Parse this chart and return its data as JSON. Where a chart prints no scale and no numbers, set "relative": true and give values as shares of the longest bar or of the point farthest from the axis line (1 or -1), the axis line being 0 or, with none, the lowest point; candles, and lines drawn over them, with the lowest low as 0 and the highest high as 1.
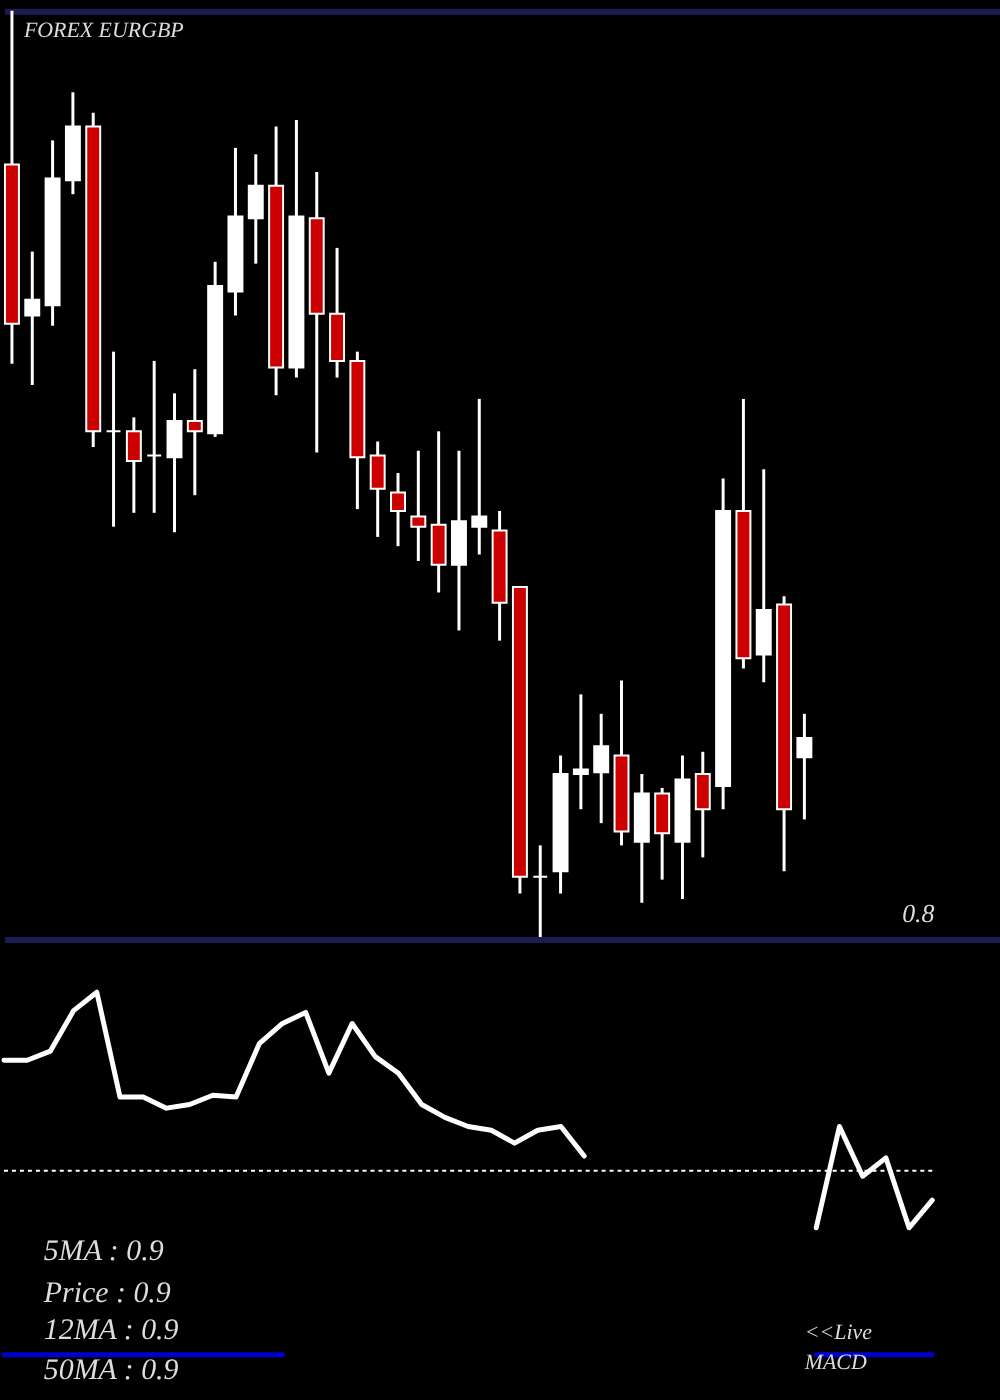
{
  "chart_data": [
    {
      "type": "candlestick",
      "title": "FOREX EURGBP",
      "relative": true,
      "categories": [
        null,
        null,
        null,
        null,
        null,
        null,
        null,
        null,
        null,
        null,
        null,
        null,
        null,
        null,
        null,
        null,
        null,
        null,
        null,
        null,
        null,
        null,
        null,
        null,
        null,
        null,
        null,
        null,
        null,
        null,
        null,
        null,
        null,
        null,
        null,
        null,
        null,
        null,
        null,
        null
      ],
      "ohlc": [
        [
          0.834,
          1.0,
          0.619,
          0.662
        ],
        [
          0.671,
          0.74,
          0.596,
          0.688
        ],
        [
          0.682,
          0.86,
          0.66,
          0.819
        ],
        [
          0.817,
          0.912,
          0.802,
          0.875
        ],
        [
          0.875,
          0.89,
          0.529,
          0.546
        ],
        [
          0.546,
          0.632,
          0.443,
          0.546
        ],
        [
          0.546,
          0.561,
          0.458,
          0.514
        ],
        [
          0.52,
          0.622,
          0.458,
          0.52
        ],
        [
          0.518,
          0.587,
          0.437,
          0.557
        ],
        [
          0.557,
          0.613,
          0.477,
          0.546
        ],
        [
          0.544,
          0.729,
          0.54,
          0.703
        ],
        [
          0.697,
          0.852,
          0.671,
          0.778
        ],
        [
          0.776,
          0.845,
          0.727,
          0.811
        ],
        [
          0.811,
          0.875,
          0.585,
          0.615
        ],
        [
          0.615,
          0.882,
          0.604,
          0.778
        ],
        [
          0.776,
          0.826,
          0.523,
          0.673
        ],
        [
          0.673,
          0.744,
          0.604,
          0.622
        ],
        [
          0.622,
          0.632,
          0.462,
          0.518
        ],
        [
          0.52,
          0.535,
          0.432,
          0.484
        ],
        [
          0.48,
          0.501,
          0.422,
          0.46
        ],
        [
          0.454,
          0.525,
          0.406,
          0.443
        ],
        [
          0.445,
          0.546,
          0.372,
          0.402
        ],
        [
          0.402,
          0.525,
          0.331,
          0.449
        ],
        [
          0.443,
          0.581,
          0.413,
          0.454
        ],
        [
          0.439,
          0.46,
          0.32,
          0.361
        ],
        [
          0.378,
          0.378,
          0.047,
          0.065
        ],
        [
          0.065,
          0.099,
          0.0,
          0.065
        ],
        [
          0.071,
          0.196,
          0.047,
          0.176
        ],
        [
          0.176,
          0.262,
          0.138,
          0.181
        ],
        [
          0.178,
          0.241,
          0.123,
          0.206
        ],
        [
          0.196,
          0.277,
          0.099,
          0.114
        ],
        [
          0.103,
          0.176,
          0.037,
          0.155
        ],
        [
          0.155,
          0.161,
          0.062,
          0.112
        ],
        [
          0.103,
          0.196,
          0.041,
          0.17
        ],
        [
          0.176,
          0.2,
          0.086,
          0.138
        ],
        [
          0.163,
          0.495,
          0.138,
          0.46
        ],
        [
          0.46,
          0.581,
          0.29,
          0.301
        ],
        [
          0.305,
          0.505,
          0.275,
          0.353
        ],
        [
          0.359,
          0.368,
          0.071,
          0.138
        ],
        [
          0.194,
          0.241,
          0.127,
          0.215
        ]
      ],
      "colors": [
        "#cc0000",
        "#ffffff",
        "#ffffff",
        "#ffffff",
        "#cc0000",
        "#ffffff",
        "#cc0000",
        "#ffffff",
        "#ffffff",
        "#cc0000",
        "#ffffff",
        "#ffffff",
        "#ffffff",
        "#cc0000",
        "#ffffff",
        "#cc0000",
        "#cc0000",
        "#cc0000",
        "#cc0000",
        "#cc0000",
        "#cc0000",
        "#cc0000",
        "#ffffff",
        "#ffffff",
        "#cc0000",
        "#cc0000",
        "#ffffff",
        "#ffffff",
        "#ffffff",
        "#ffffff",
        "#cc0000",
        "#ffffff",
        "#cc0000",
        "#ffffff",
        "#cc0000",
        "#ffffff",
        "#cc0000",
        "#ffffff",
        "#cc0000",
        "#ffffff"
      ],
      "annotations": [
        "0.8"
      ]
    },
    {
      "type": "line",
      "relative": true,
      "categories": [
        null,
        null,
        null,
        null,
        null,
        null,
        null,
        null,
        null,
        null,
        null,
        null,
        null,
        null,
        null,
        null,
        null,
        null,
        null,
        null,
        null,
        null,
        null,
        null,
        null,
        null,
        null,
        null,
        null,
        null,
        null,
        null,
        null,
        null,
        null,
        null,
        null,
        null,
        null,
        null,
        null
      ],
      "series": [
        {
          "color": "#ffffff",
          "values": [
            0.6,
            0.6,
            0.65,
            0.87,
            0.97,
            0.4,
            0.4,
            0.34,
            0.36,
            0.41,
            0.4,
            0.69,
            0.8,
            0.86,
            0.53,
            0.8,
            0.62,
            0.53,
            0.36,
            0.29,
            0.24,
            0.22,
            0.15,
            0.22,
            0.24,
            0.08,
            null,
            null,
            null,
            null,
            null,
            null,
            null,
            null,
            null,
            -0.31,
            0.24,
            -0.03,
            0.07,
            -0.31,
            -0.16
          ]
        },
        {
          "color": "#0000cc",
          "values": [
            -1,
            -1,
            -1,
            -1,
            -1,
            -1,
            -1,
            -1,
            -1,
            -1,
            -1,
            -1,
            -1,
            null,
            null,
            null,
            null,
            null,
            null,
            null,
            null,
            null,
            null,
            null,
            null,
            null,
            null,
            null,
            null,
            null,
            null,
            null,
            null,
            null,
            null,
            -1,
            -1,
            -1,
            -1,
            -1,
            -1
          ]
        }
      ],
      "ref_lines": [
        {
          "axis": "y",
          "value": 0,
          "color": "#ffffff",
          "line_style": "dotted"
        }
      ],
      "annotations": [
        "5MA : 0.9",
        "Price : 0.9",
        "12MA : 0.9",
        "50MA : 0.9",
        "<<Live",
        "MACD"
      ]
    }
  ]
}
